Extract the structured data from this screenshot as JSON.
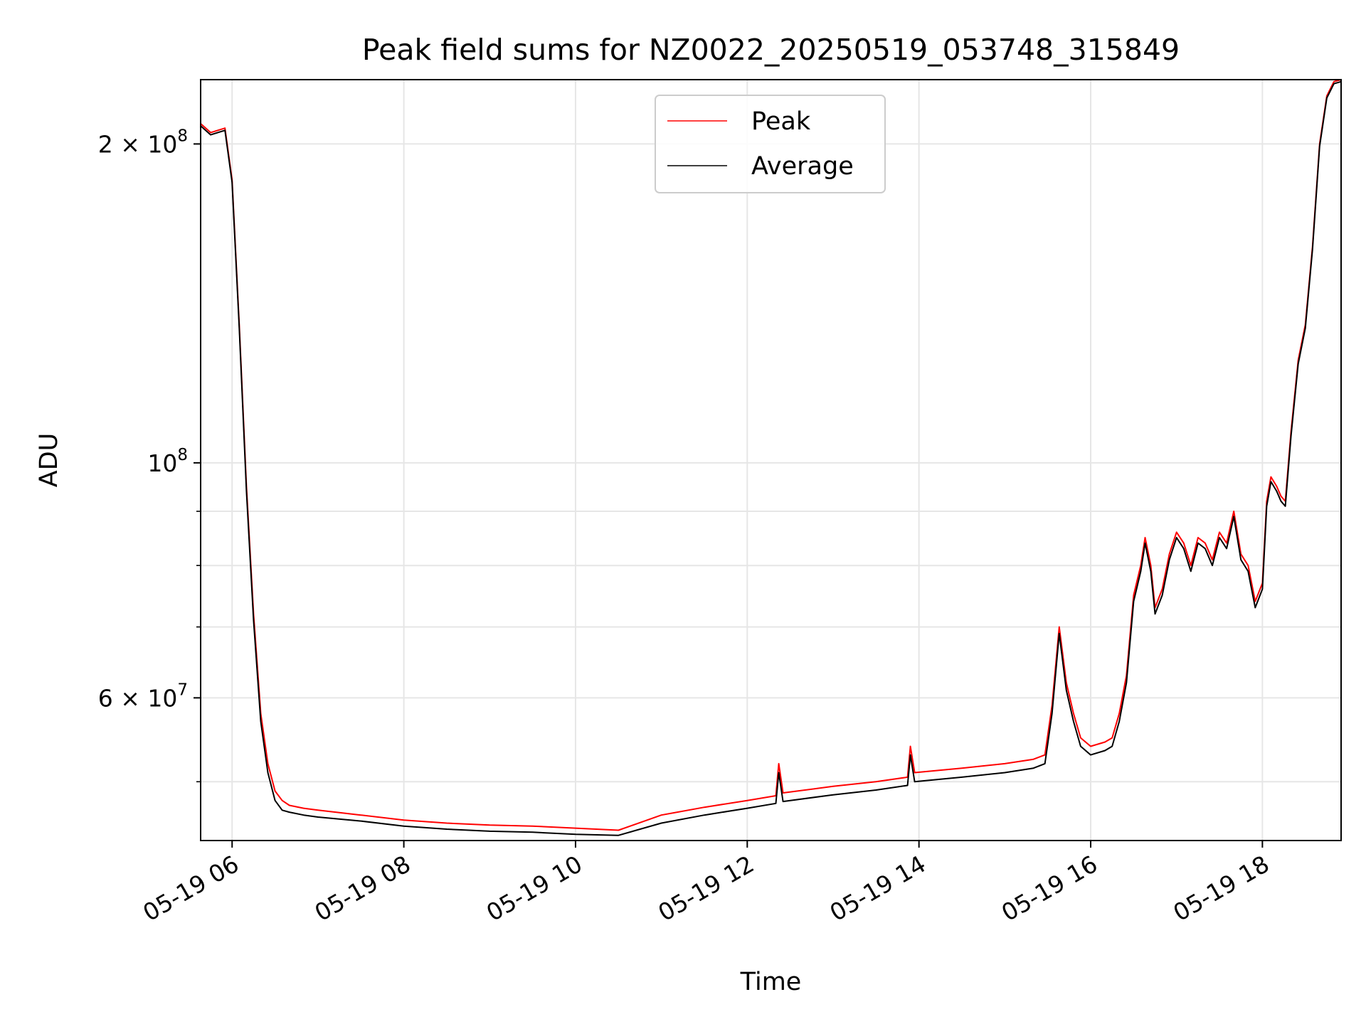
{
  "chart_data": {
    "type": "line",
    "title": "Peak field sums for NZ0022_20250519_053748_315849",
    "xlabel": "Time",
    "ylabel": "ADU",
    "x_scale": "time",
    "y_scale": "log",
    "xlim": [
      "2025-05-19 05:38",
      "2025-05-19 18:55"
    ],
    "ylim": [
      44000000,
      230000000
    ],
    "grid": true,
    "legend_position": "upper center",
    "x_ticks": [
      {
        "value": "2025-05-19 06:00",
        "label": "05-19 06"
      },
      {
        "value": "2025-05-19 08:00",
        "label": "05-19 08"
      },
      {
        "value": "2025-05-19 10:00",
        "label": "05-19 10"
      },
      {
        "value": "2025-05-19 12:00",
        "label": "05-19 12"
      },
      {
        "value": "2025-05-19 14:00",
        "label": "05-19 14"
      },
      {
        "value": "2025-05-19 16:00",
        "label": "05-19 16"
      },
      {
        "value": "2025-05-19 18:00",
        "label": "05-19 18"
      }
    ],
    "y_ticks_major": [
      {
        "value": 200000000,
        "mantissa": "2",
        "exponent": "8"
      },
      {
        "value": 100000000,
        "mantissa": "",
        "exponent": "8"
      },
      {
        "value": 60000000,
        "mantissa": "6",
        "exponent": "7"
      }
    ],
    "y_ticks_minor": [
      50000000,
      70000000,
      80000000,
      90000000
    ],
    "series": [
      {
        "name": "Peak",
        "color": "#ff0000",
        "x": [
          "2025-05-19 05:38",
          "2025-05-19 05:45",
          "2025-05-19 05:50",
          "2025-05-19 05:55",
          "2025-05-19 06:00",
          "2025-05-19 06:05",
          "2025-05-19 06:10",
          "2025-05-19 06:15",
          "2025-05-19 06:20",
          "2025-05-19 06:25",
          "2025-05-19 06:30",
          "2025-05-19 06:35",
          "2025-05-19 06:40",
          "2025-05-19 06:50",
          "2025-05-19 07:00",
          "2025-05-19 07:30",
          "2025-05-19 08:00",
          "2025-05-19 08:30",
          "2025-05-19 09:00",
          "2025-05-19 09:30",
          "2025-05-19 10:00",
          "2025-05-19 10:30",
          "2025-05-19 11:00",
          "2025-05-19 11:30",
          "2025-05-19 12:00",
          "2025-05-19 12:20",
          "2025-05-19 12:22",
          "2025-05-19 12:25",
          "2025-05-19 13:00",
          "2025-05-19 13:30",
          "2025-05-19 13:52",
          "2025-05-19 13:54",
          "2025-05-19 13:57",
          "2025-05-19 14:30",
          "2025-05-19 15:00",
          "2025-05-19 15:20",
          "2025-05-19 15:28",
          "2025-05-19 15:33",
          "2025-05-19 15:38",
          "2025-05-19 15:43",
          "2025-05-19 15:48",
          "2025-05-19 15:53",
          "2025-05-19 16:00",
          "2025-05-19 16:10",
          "2025-05-19 16:15",
          "2025-05-19 16:20",
          "2025-05-19 16:25",
          "2025-05-19 16:30",
          "2025-05-19 16:35",
          "2025-05-19 16:38",
          "2025-05-19 16:42",
          "2025-05-19 16:45",
          "2025-05-19 16:50",
          "2025-05-19 16:55",
          "2025-05-19 17:00",
          "2025-05-19 17:05",
          "2025-05-19 17:10",
          "2025-05-19 17:15",
          "2025-05-19 17:20",
          "2025-05-19 17:25",
          "2025-05-19 17:30",
          "2025-05-19 17:35",
          "2025-05-19 17:40",
          "2025-05-19 17:45",
          "2025-05-19 17:50",
          "2025-05-19 17:55",
          "2025-05-19 18:00",
          "2025-05-19 18:03",
          "2025-05-19 18:06",
          "2025-05-19 18:10",
          "2025-05-19 18:13",
          "2025-05-19 18:16",
          "2025-05-19 18:20",
          "2025-05-19 18:25",
          "2025-05-19 18:30",
          "2025-05-19 18:35",
          "2025-05-19 18:40",
          "2025-05-19 18:45",
          "2025-05-19 18:50",
          "2025-05-19 18:55"
        ],
        "values": [
          209000000,
          205000000,
          206000000,
          207000000,
          185000000,
          135000000,
          95000000,
          72000000,
          58000000,
          52000000,
          49000000,
          48000000,
          47500000,
          47200000,
          47000000,
          46500000,
          46000000,
          45700000,
          45500000,
          45400000,
          45200000,
          45000000,
          46500000,
          47300000,
          48000000,
          48500000,
          52000000,
          48800000,
          49500000,
          50000000,
          50500000,
          54000000,
          51000000,
          51500000,
          52000000,
          52500000,
          53000000,
          59000000,
          70000000,
          62000000,
          58000000,
          55000000,
          54000000,
          54500000,
          55000000,
          58000000,
          63000000,
          75000000,
          80000000,
          85000000,
          80000000,
          73000000,
          76000000,
          82000000,
          86000000,
          84000000,
          80000000,
          85000000,
          84000000,
          81000000,
          86000000,
          84000000,
          90000000,
          82000000,
          80000000,
          74000000,
          77000000,
          92000000,
          97000000,
          95000000,
          93000000,
          92000000,
          107000000,
          125000000,
          135000000,
          160000000,
          200000000,
          222000000,
          229000000,
          230000000
        ]
      },
      {
        "name": "Average",
        "color": "#000000",
        "x": [
          "2025-05-19 05:38",
          "2025-05-19 05:45",
          "2025-05-19 05:50",
          "2025-05-19 05:55",
          "2025-05-19 06:00",
          "2025-05-19 06:05",
          "2025-05-19 06:10",
          "2025-05-19 06:15",
          "2025-05-19 06:20",
          "2025-05-19 06:25",
          "2025-05-19 06:30",
          "2025-05-19 06:35",
          "2025-05-19 06:40",
          "2025-05-19 06:50",
          "2025-05-19 07:00",
          "2025-05-19 07:30",
          "2025-05-19 08:00",
          "2025-05-19 08:30",
          "2025-05-19 09:00",
          "2025-05-19 09:30",
          "2025-05-19 10:00",
          "2025-05-19 10:30",
          "2025-05-19 11:00",
          "2025-05-19 11:30",
          "2025-05-19 12:00",
          "2025-05-19 12:20",
          "2025-05-19 12:22",
          "2025-05-19 12:25",
          "2025-05-19 13:00",
          "2025-05-19 13:30",
          "2025-05-19 13:52",
          "2025-05-19 13:54",
          "2025-05-19 13:57",
          "2025-05-19 14:30",
          "2025-05-19 15:00",
          "2025-05-19 15:20",
          "2025-05-19 15:28",
          "2025-05-19 15:33",
          "2025-05-19 15:38",
          "2025-05-19 15:43",
          "2025-05-19 15:48",
          "2025-05-19 15:53",
          "2025-05-19 16:00",
          "2025-05-19 16:10",
          "2025-05-19 16:15",
          "2025-05-19 16:20",
          "2025-05-19 16:25",
          "2025-05-19 16:30",
          "2025-05-19 16:35",
          "2025-05-19 16:38",
          "2025-05-19 16:42",
          "2025-05-19 16:45",
          "2025-05-19 16:50",
          "2025-05-19 16:55",
          "2025-05-19 17:00",
          "2025-05-19 17:05",
          "2025-05-19 17:10",
          "2025-05-19 17:15",
          "2025-05-19 17:20",
          "2025-05-19 17:25",
          "2025-05-19 17:30",
          "2025-05-19 17:35",
          "2025-05-19 17:40",
          "2025-05-19 17:45",
          "2025-05-19 17:50",
          "2025-05-19 17:55",
          "2025-05-19 18:00",
          "2025-05-19 18:03",
          "2025-05-19 18:06",
          "2025-05-19 18:10",
          "2025-05-19 18:13",
          "2025-05-19 18:16",
          "2025-05-19 18:20",
          "2025-05-19 18:25",
          "2025-05-19 18:30",
          "2025-05-19 18:35",
          "2025-05-19 18:40",
          "2025-05-19 18:45",
          "2025-05-19 18:50",
          "2025-05-19 18:55"
        ],
        "values": [
          208000000,
          204000000,
          205000000,
          206000000,
          184000000,
          134000000,
          94000000,
          71000000,
          57000000,
          51000000,
          48000000,
          47000000,
          46800000,
          46500000,
          46300000,
          45900000,
          45400000,
          45100000,
          44900000,
          44800000,
          44600000,
          44500000,
          45700000,
          46500000,
          47200000,
          47700000,
          51000000,
          47900000,
          48600000,
          49100000,
          49600000,
          53000000,
          50000000,
          50500000,
          51000000,
          51500000,
          52000000,
          58000000,
          69000000,
          61000000,
          57000000,
          54000000,
          53000000,
          53500000,
          54000000,
          57000000,
          62000000,
          74000000,
          79000000,
          84000000,
          79000000,
          72000000,
          75000000,
          81000000,
          85000000,
          83000000,
          79000000,
          84000000,
          83000000,
          80000000,
          85000000,
          83000000,
          89000000,
          81000000,
          79000000,
          73000000,
          76000000,
          91000000,
          96000000,
          94000000,
          92000000,
          91000000,
          106000000,
          124000000,
          134000000,
          159000000,
          199000000,
          221000000,
          228000000,
          229000000
        ]
      }
    ]
  }
}
